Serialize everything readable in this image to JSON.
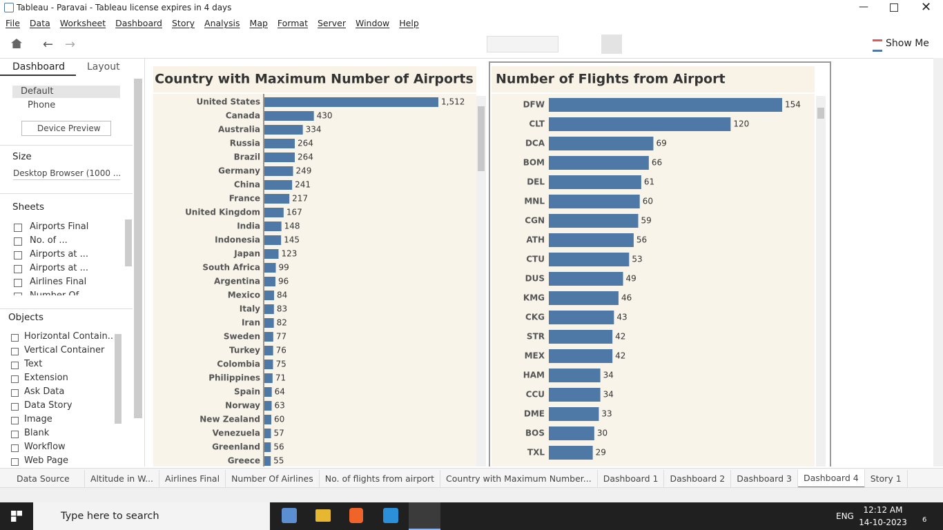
{
  "window": {
    "title": "Tableau - Paravai - Tableau license expires in 4 days"
  },
  "menu": [
    "File",
    "Data",
    "Worksheet",
    "Dashboard",
    "Story",
    "Analysis",
    "Map",
    "Format",
    "Server",
    "Window",
    "Help"
  ],
  "toolbar": {
    "show_me": "Show Me"
  },
  "side_panel": {
    "tabs": [
      "Dashboard",
      "Layout"
    ],
    "devices": [
      "Default",
      "Phone"
    ],
    "device_preview": "Device Preview",
    "size_heading": "Size",
    "size_value": "Desktop Browser (1000 ...",
    "sheets_heading": "Sheets",
    "sheets": [
      "Airports Final",
      "No. of ...",
      "Airports at ...",
      "Airports at ...",
      "Airlines Final",
      "Number Of"
    ],
    "objects_heading": "Objects",
    "objects": [
      "Horizontal Contain...",
      "Vertical Container",
      "Text",
      "Extension",
      "Ask Data",
      "Data Story",
      "Image",
      "Blank",
      "Workflow",
      "Web Page"
    ]
  },
  "chart_data": [
    {
      "type": "bar",
      "title": "Country with Maximum Number of Airports",
      "color": "#4e79a7",
      "categories": [
        "United States",
        "Canada",
        "Australia",
        "Russia",
        "Brazil",
        "Germany",
        "China",
        "France",
        "United Kingdom",
        "India",
        "Indonesia",
        "Japan",
        "South Africa",
        "Argentina",
        "Mexico",
        "Italy",
        "Iran",
        "Sweden",
        "Turkey",
        "Colombia",
        "Philippines",
        "Spain",
        "Norway",
        "New Zealand",
        "Venezuela",
        "Greenland",
        "Greece"
      ],
      "values": [
        1512,
        430,
        334,
        264,
        264,
        249,
        241,
        217,
        167,
        148,
        145,
        123,
        99,
        96,
        84,
        83,
        82,
        77,
        76,
        75,
        71,
        64,
        63,
        60,
        57,
        56,
        55
      ],
      "value_labels": [
        "1,512",
        "430",
        "334",
        "264",
        "264",
        "249",
        "241",
        "217",
        "167",
        "148",
        "145",
        "123",
        "99",
        "96",
        "84",
        "83",
        "82",
        "77",
        "76",
        "75",
        "71",
        "64",
        "63",
        "60",
        "57",
        "56",
        "55"
      ]
    },
    {
      "type": "bar",
      "title": "Number of Flights from Airport",
      "color": "#4e79a7",
      "categories": [
        "DFW",
        "CLT",
        "DCA",
        "BOM",
        "DEL",
        "MNL",
        "CGN",
        "ATH",
        "CTU",
        "DUS",
        "KMG",
        "CKG",
        "STR",
        "MEX",
        "HAM",
        "CCU",
        "DME",
        "BOS",
        "TXL"
      ],
      "values": [
        154,
        120,
        69,
        66,
        61,
        60,
        59,
        56,
        53,
        49,
        46,
        43,
        42,
        42,
        34,
        34,
        33,
        30,
        29
      ]
    }
  ],
  "sheet_tabs": [
    "Data Source",
    "Altitude in W...",
    "Airlines Final",
    "Number Of Airlines",
    "No. of flights from airport",
    "Country with Maximum Number...",
    "Dashboard 1",
    "Dashboard 2",
    "Dashboard 3",
    "Dashboard 4",
    "Story 1"
  ],
  "taskbar": {
    "search": "Type here to search",
    "language": "ENG",
    "time": "12:12 AM",
    "date": "14-10-2023",
    "notifications": "6"
  }
}
